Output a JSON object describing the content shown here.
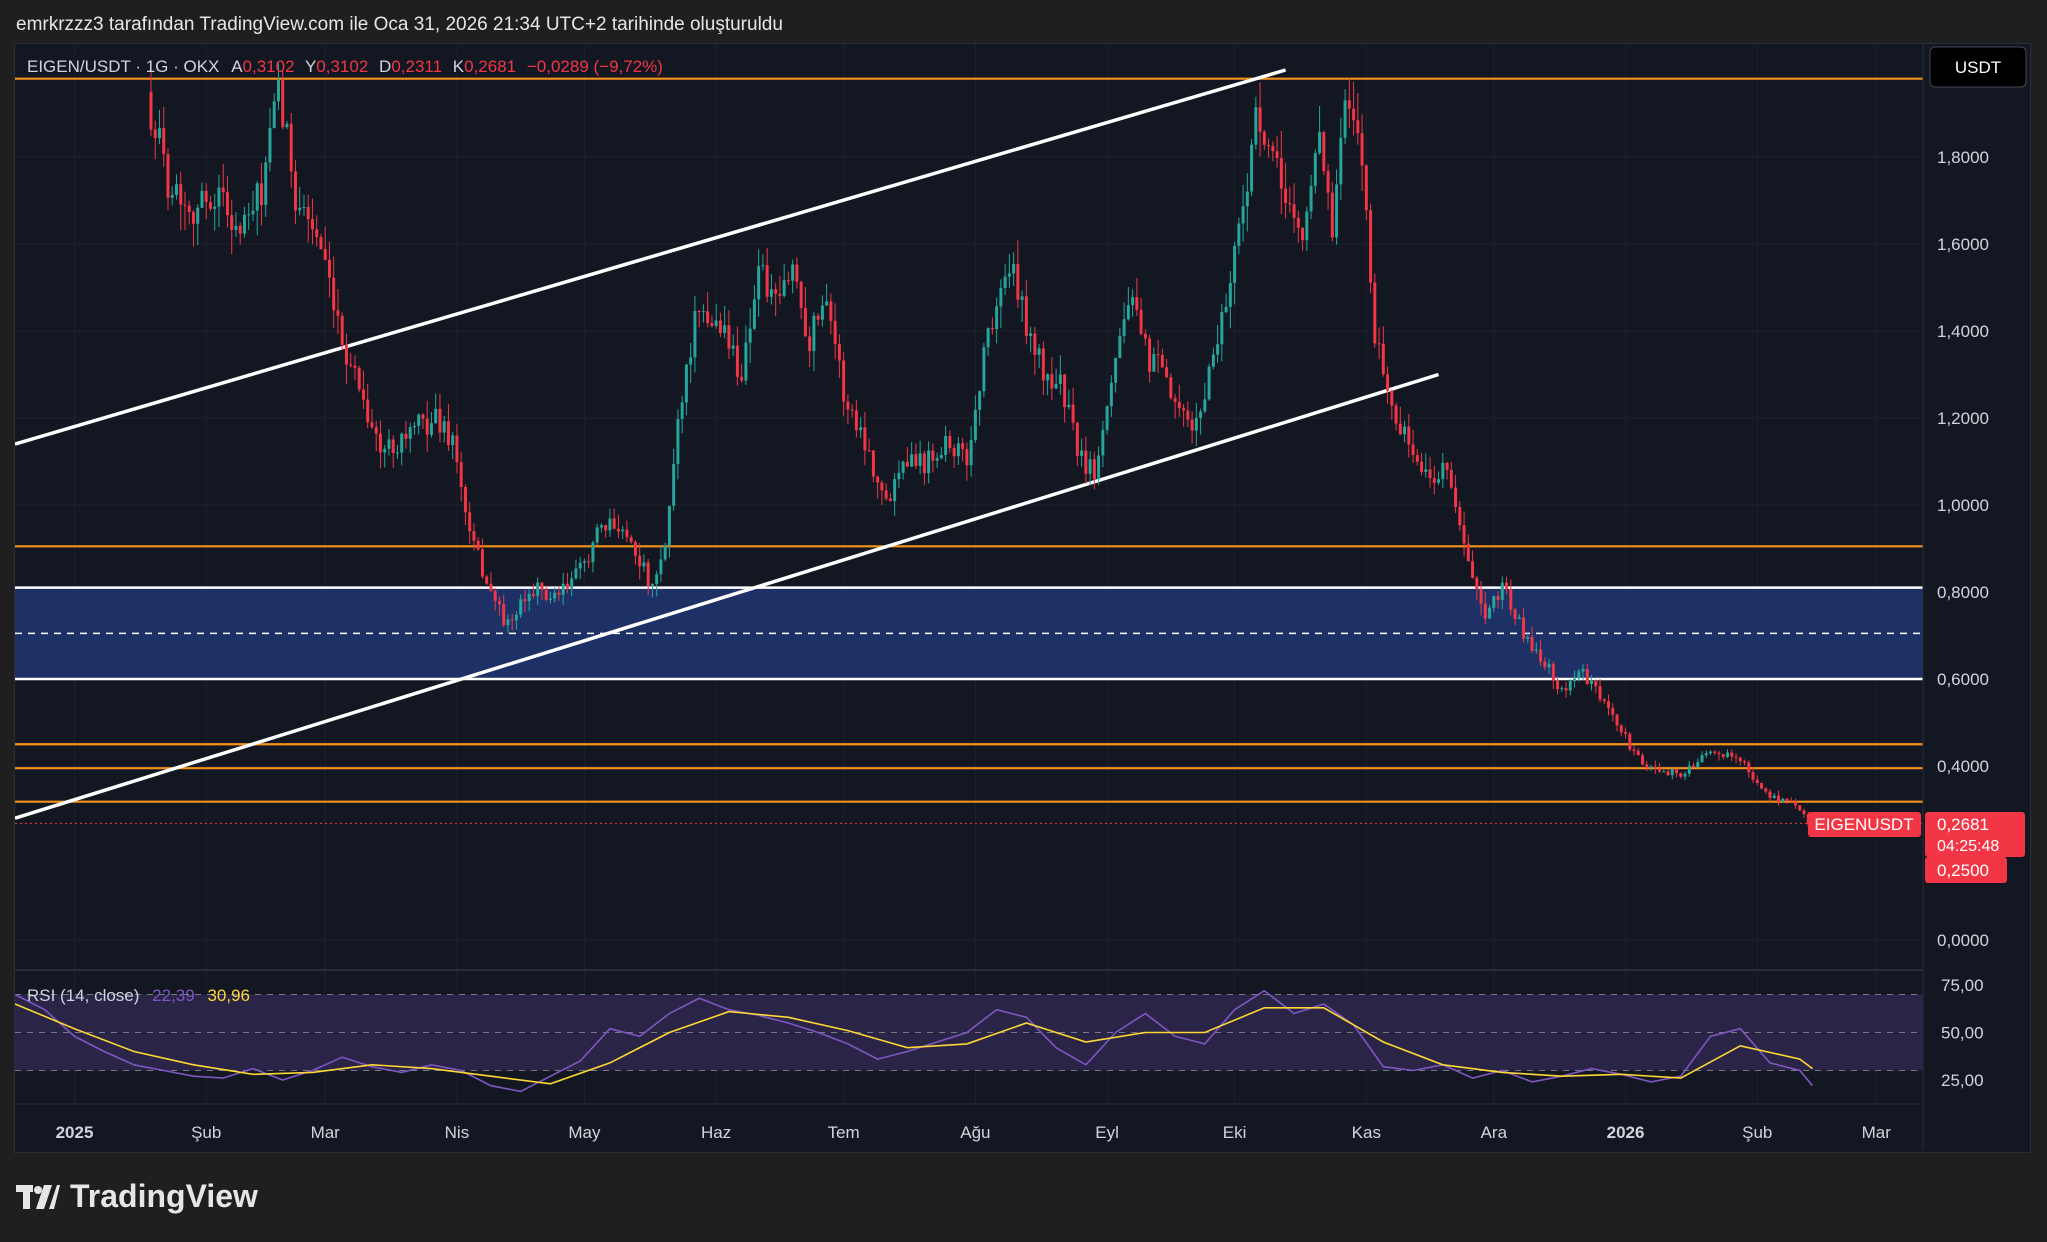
{
  "header": {
    "credit": "emrkrzzz3 tarafından TradingView.com ile Oca 31, 2026 21:34 UTC+2 tarihinde oluşturuldu"
  },
  "brand": {
    "name": "TradingView",
    "logo_icon": "tradingview-logo-icon"
  },
  "colors": {
    "up": "#26a69a",
    "down": "#f23645",
    "level": "#f7931a",
    "channel": "#ffffff",
    "zone_fill": "#1e3166",
    "rsi_line": "#7e57c2",
    "rsi_ma": "#fdd835",
    "rsi_band": "#2a2446"
  },
  "chart_data": {
    "type": "candlestick",
    "symbol_legend": {
      "symbol": "EIGEN/USDT · 1G · OKX",
      "open_label": "A",
      "open": "0,3102",
      "high_label": "Y",
      "high": "0,3102",
      "low_label": "D",
      "low": "0,2311",
      "close_label": "K",
      "close": "0,2681",
      "change": "−0,0289 (−9,72%)"
    },
    "currency_label": "USDT",
    "y_axis": {
      "ticks": [
        "1,8000",
        "1,6000",
        "1,4000",
        "1,2000",
        "1,0000",
        "0,8000",
        "0,6000",
        "0,4000",
        "0,0000"
      ],
      "tick_values": [
        1.8,
        1.6,
        1.4,
        1.2,
        1.0,
        0.8,
        0.6,
        0.4,
        0.0
      ],
      "range": [
        0,
        2.05
      ]
    },
    "x_axis": {
      "labels": [
        "2025",
        "Şub",
        "Mar",
        "Nis",
        "May",
        "Haz",
        "Tem",
        "Ağu",
        "Eyl",
        "Eki",
        "Kas",
        "Ara",
        "2026",
        "Şub",
        "Mar"
      ],
      "dates": [
        "2025-01-01",
        "2025-02-01",
        "2025-03-01",
        "2025-04-01",
        "2025-05-01",
        "2025-06-01",
        "2025-07-01",
        "2025-08-01",
        "2025-09-01",
        "2025-10-01",
        "2025-11-01",
        "2025-12-01",
        "2026-01-01",
        "2026-02-01",
        "2026-03-01"
      ],
      "bold": [
        "2025",
        "2026"
      ],
      "range": [
        "2024-12-18",
        "2026-03-12"
      ]
    },
    "price_path": [
      [
        "2025-01-19",
        1.95
      ],
      [
        "2025-01-24",
        1.75
      ],
      [
        "2025-01-30",
        1.68
      ],
      [
        "2025-02-05",
        1.72
      ],
      [
        "2025-02-10",
        1.62
      ],
      [
        "2025-02-15",
        1.72
      ],
      [
        "2025-02-19",
        1.95
      ],
      [
        "2025-02-23",
        1.72
      ],
      [
        "2025-02-28",
        1.62
      ],
      [
        "2025-03-05",
        1.4
      ],
      [
        "2025-03-10",
        1.28
      ],
      [
        "2025-03-15",
        1.12
      ],
      [
        "2025-03-22",
        1.17
      ],
      [
        "2025-03-28",
        1.2
      ],
      [
        "2025-04-01",
        1.15
      ],
      [
        "2025-04-05",
        0.93
      ],
      [
        "2025-04-10",
        0.8
      ],
      [
        "2025-04-14",
        0.72
      ],
      [
        "2025-04-20",
        0.81
      ],
      [
        "2025-04-25",
        0.78
      ],
      [
        "2025-05-01",
        0.85
      ],
      [
        "2025-05-05",
        0.93
      ],
      [
        "2025-05-10",
        0.96
      ],
      [
        "2025-05-14",
        0.9
      ],
      [
        "2025-05-18",
        0.8
      ],
      [
        "2025-05-21",
        0.9
      ],
      [
        "2025-05-24",
        1.2
      ],
      [
        "2025-05-28",
        1.42
      ],
      [
        "2025-06-03",
        1.42
      ],
      [
        "2025-06-08",
        1.3
      ],
      [
        "2025-06-12",
        1.55
      ],
      [
        "2025-06-16",
        1.45
      ],
      [
        "2025-06-20",
        1.55
      ],
      [
        "2025-06-24",
        1.38
      ],
      [
        "2025-06-28",
        1.5
      ],
      [
        "2025-07-02",
        1.25
      ],
      [
        "2025-07-07",
        1.15
      ],
      [
        "2025-07-12",
        1.0
      ],
      [
        "2025-07-16",
        1.12
      ],
      [
        "2025-07-21",
        1.1
      ],
      [
        "2025-07-26",
        1.15
      ],
      [
        "2025-07-31",
        1.1
      ],
      [
        "2025-08-05",
        1.4
      ],
      [
        "2025-08-10",
        1.55
      ],
      [
        "2025-08-14",
        1.42
      ],
      [
        "2025-08-18",
        1.3
      ],
      [
        "2025-08-22",
        1.28
      ],
      [
        "2025-08-27",
        1.1
      ],
      [
        "2025-08-30",
        1.08
      ],
      [
        "2025-09-03",
        1.3
      ],
      [
        "2025-09-07",
        1.48
      ],
      [
        "2025-09-11",
        1.35
      ],
      [
        "2025-09-15",
        1.3
      ],
      [
        "2025-09-19",
        1.2
      ],
      [
        "2025-09-23",
        1.18
      ],
      [
        "2025-09-27",
        1.35
      ],
      [
        "2025-10-01",
        1.52
      ],
      [
        "2025-10-04",
        1.7
      ],
      [
        "2025-10-07",
        1.88
      ],
      [
        "2025-10-10",
        1.8
      ],
      [
        "2025-10-14",
        1.72
      ],
      [
        "2025-10-18",
        1.6
      ],
      [
        "2025-10-22",
        1.88
      ],
      [
        "2025-10-25",
        1.62
      ],
      [
        "2025-10-28",
        1.92
      ],
      [
        "2025-11-01",
        1.8
      ],
      [
        "2025-11-04",
        1.4
      ],
      [
        "2025-11-08",
        1.22
      ],
      [
        "2025-11-12",
        1.14
      ],
      [
        "2025-11-17",
        1.05
      ],
      [
        "2025-11-21",
        1.1
      ],
      [
        "2025-11-25",
        0.9
      ],
      [
        "2025-11-30",
        0.73
      ],
      [
        "2025-12-04",
        0.82
      ],
      [
        "2025-12-09",
        0.7
      ],
      [
        "2025-12-14",
        0.64
      ],
      [
        "2025-12-18",
        0.57
      ],
      [
        "2025-12-22",
        0.62
      ],
      [
        "2025-12-27",
        0.56
      ],
      [
        "2026-01-01",
        0.48
      ],
      [
        "2026-01-06",
        0.4
      ],
      [
        "2026-01-11",
        0.39
      ],
      [
        "2026-01-16",
        0.38
      ],
      [
        "2026-01-20",
        0.43
      ],
      [
        "2026-01-24",
        0.42
      ],
      [
        "2026-01-28",
        0.43
      ],
      [
        "2026-02-01",
        0.37
      ],
      [
        "2026-02-05",
        0.33
      ],
      [
        "2026-02-09",
        0.32
      ],
      [
        "2026-02-12",
        0.3
      ],
      [
        "2026-02-14",
        0.27
      ]
    ],
    "horizontal_levels": [
      1.98,
      0.905,
      0.45,
      0.395,
      0.318
    ],
    "zone": {
      "top": 0.81,
      "bottom": 0.6,
      "mid": 0.705
    },
    "channel_lines": [
      {
        "from": [
          "2024-12-18",
          1.14
        ],
        "to": [
          "2025-10-13",
          2.0
        ]
      },
      {
        "from": [
          "2024-12-18",
          0.28
        ],
        "to": [
          "2025-11-18",
          1.3
        ]
      }
    ],
    "last_price": {
      "symbol_tag": "EIGENUSDT",
      "price": "0,2681",
      "countdown": "04:25:48",
      "low_marker": "0,2500",
      "value": 0.2681
    },
    "rsi": {
      "legend_name": "RSI (14, close)",
      "value": "22,39",
      "ma_value": "30,96",
      "ticks": [
        "75,00",
        "50,00",
        "25,00"
      ],
      "tick_values": [
        75,
        50,
        25
      ],
      "upper_band": 70,
      "middle_band": 50,
      "lower_band": 30,
      "range": [
        15,
        82
      ],
      "series": [
        [
          "2024-12-18",
          70
        ],
        [
          "2024-12-25",
          62
        ],
        [
          "2025-01-01",
          48
        ],
        [
          "2025-01-08",
          40
        ],
        [
          "2025-01-15",
          33
        ],
        [
          "2025-01-22",
          30
        ],
        [
          "2025-01-29",
          27
        ],
        [
          "2025-02-05",
          26
        ],
        [
          "2025-02-12",
          31
        ],
        [
          "2025-02-19",
          25
        ],
        [
          "2025-02-26",
          30
        ],
        [
          "2025-03-05",
          37
        ],
        [
          "2025-03-12",
          32
        ],
        [
          "2025-03-19",
          29
        ],
        [
          "2025-03-26",
          33
        ],
        [
          "2025-04-02",
          30
        ],
        [
          "2025-04-09",
          22
        ],
        [
          "2025-04-16",
          19
        ],
        [
          "2025-04-23",
          27
        ],
        [
          "2025-04-30",
          35
        ],
        [
          "2025-05-07",
          52
        ],
        [
          "2025-05-14",
          48
        ],
        [
          "2025-05-21",
          60
        ],
        [
          "2025-05-28",
          68
        ],
        [
          "2025-06-04",
          62
        ],
        [
          "2025-06-11",
          59
        ],
        [
          "2025-06-18",
          55
        ],
        [
          "2025-06-25",
          50
        ],
        [
          "2025-07-02",
          44
        ],
        [
          "2025-07-09",
          36
        ],
        [
          "2025-07-16",
          40
        ],
        [
          "2025-07-23",
          45
        ],
        [
          "2025-07-30",
          50
        ],
        [
          "2025-08-06",
          62
        ],
        [
          "2025-08-13",
          58
        ],
        [
          "2025-08-20",
          42
        ],
        [
          "2025-08-27",
          33
        ],
        [
          "2025-09-03",
          50
        ],
        [
          "2025-09-10",
          60
        ],
        [
          "2025-09-17",
          48
        ],
        [
          "2025-09-24",
          44
        ],
        [
          "2025-10-01",
          62
        ],
        [
          "2025-10-08",
          72
        ],
        [
          "2025-10-15",
          60
        ],
        [
          "2025-10-22",
          65
        ],
        [
          "2025-10-29",
          54
        ],
        [
          "2025-11-05",
          32
        ],
        [
          "2025-11-12",
          30
        ],
        [
          "2025-11-19",
          33
        ],
        [
          "2025-11-26",
          26
        ],
        [
          "2025-12-03",
          30
        ],
        [
          "2025-12-10",
          24
        ],
        [
          "2025-12-17",
          27
        ],
        [
          "2025-12-24",
          31
        ],
        [
          "2025-12-31",
          28
        ],
        [
          "2026-01-07",
          24
        ],
        [
          "2026-01-14",
          27
        ],
        [
          "2026-01-21",
          48
        ],
        [
          "2026-01-28",
          52
        ],
        [
          "2026-02-04",
          34
        ],
        [
          "2026-02-11",
          30
        ],
        [
          "2026-02-14",
          22
        ]
      ],
      "ma_series": [
        [
          "2024-12-18",
          65
        ],
        [
          "2025-01-01",
          52
        ],
        [
          "2025-01-15",
          40
        ],
        [
          "2025-01-29",
          33
        ],
        [
          "2025-02-12",
          28
        ],
        [
          "2025-02-26",
          29
        ],
        [
          "2025-03-12",
          33
        ],
        [
          "2025-03-26",
          31
        ],
        [
          "2025-04-09",
          27
        ],
        [
          "2025-04-23",
          23
        ],
        [
          "2025-05-07",
          34
        ],
        [
          "2025-05-21",
          50
        ],
        [
          "2025-06-04",
          61
        ],
        [
          "2025-06-18",
          58
        ],
        [
          "2025-07-02",
          51
        ],
        [
          "2025-07-16",
          42
        ],
        [
          "2025-07-30",
          44
        ],
        [
          "2025-08-13",
          55
        ],
        [
          "2025-08-27",
          45
        ],
        [
          "2025-09-10",
          50
        ],
        [
          "2025-09-24",
          50
        ],
        [
          "2025-10-08",
          63
        ],
        [
          "2025-10-22",
          63
        ],
        [
          "2025-11-05",
          45
        ],
        [
          "2025-11-19",
          33
        ],
        [
          "2025-12-03",
          29
        ],
        [
          "2025-12-17",
          27
        ],
        [
          "2025-12-31",
          28
        ],
        [
          "2026-01-14",
          26
        ],
        [
          "2026-01-28",
          43
        ],
        [
          "2026-02-11",
          36
        ],
        [
          "2026-02-14",
          31
        ]
      ]
    }
  }
}
